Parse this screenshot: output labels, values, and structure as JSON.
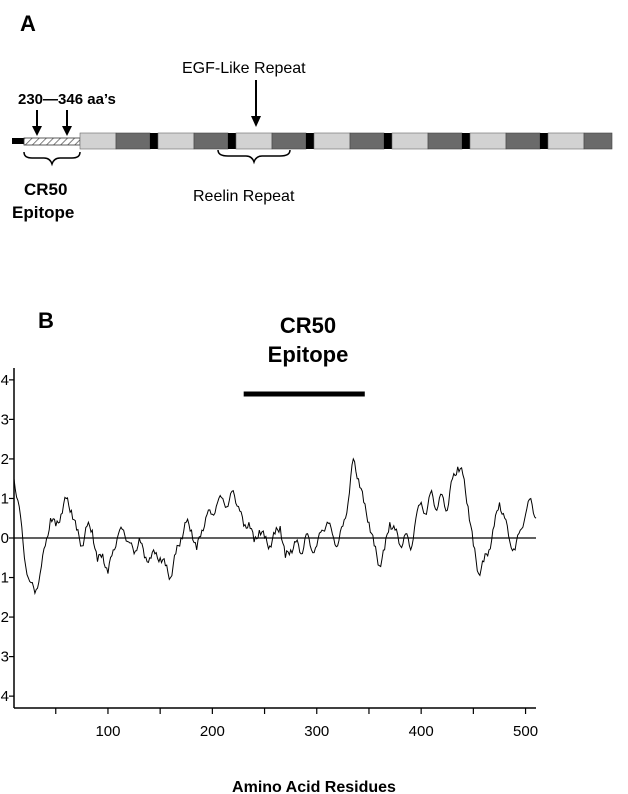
{
  "panel_a": {
    "letter": "A",
    "range_label": "230—346 aa’s",
    "egf_label": "EGF-Like Repeat",
    "reelin_label": "Reelin Repeat",
    "epitope_line1": "CR50",
    "epitope_line2": "Epitope"
  },
  "panel_b": {
    "letter": "B",
    "epitope_line1": "CR50",
    "epitope_line2": "Epitope",
    "xlabel": "Amino Acid Residues"
  },
  "chart_data": {
    "type": "line",
    "title": "",
    "xlabel": "Amino Acid Residues",
    "ylabel": "",
    "xlim": [
      10,
      510
    ],
    "ylim": [
      -4.3,
      4.3
    ],
    "xticks": [
      100,
      200,
      300,
      400,
      500
    ],
    "yticks": [
      4,
      3,
      2,
      1,
      0,
      -1,
      -2,
      -3,
      -4
    ],
    "ytick_labels": [
      "4",
      "3",
      "2",
      "1",
      "0",
      "1",
      "2",
      "3",
      "4"
    ],
    "epitope_range": [
      230,
      346
    ],
    "series": [
      {
        "x": [
          10,
          15,
          20,
          25,
          30,
          35,
          40,
          45,
          50,
          55,
          60,
          65,
          70,
          75,
          80,
          85,
          90,
          95,
          100,
          105,
          110,
          115,
          120,
          125,
          130,
          135,
          140,
          145,
          150,
          155,
          160,
          165,
          170,
          175,
          180,
          185,
          190,
          195,
          200,
          205,
          210,
          215,
          220,
          225,
          230,
          235,
          240,
          245,
          250,
          255,
          260,
          265,
          270,
          275,
          280,
          285,
          290,
          295,
          300,
          305,
          310,
          315,
          320,
          325,
          330,
          335,
          340,
          345,
          350,
          355,
          360,
          365,
          370,
          375,
          380,
          385,
          390,
          395,
          400,
          405,
          410,
          415,
          420,
          425,
          430,
          435,
          440,
          445,
          450,
          455,
          460,
          465,
          470,
          475,
          480,
          485,
          490,
          495,
          500,
          505,
          510
        ],
        "values": [
          1.5,
          0.8,
          -0.5,
          -1.1,
          -1.4,
          -0.9,
          -0.2,
          0.5,
          0.3,
          0.6,
          1.0,
          0.7,
          0.2,
          -0.2,
          0.3,
          0.2,
          -0.6,
          -0.4,
          -0.9,
          -0.3,
          0.1,
          0.2,
          -0.1,
          -0.4,
          0.0,
          -0.5,
          -0.5,
          -0.4,
          -0.5,
          -0.7,
          -1.0,
          -0.4,
          0.0,
          0.4,
          0.2,
          -0.3,
          0.2,
          0.6,
          0.6,
          0.9,
          1.0,
          0.8,
          1.2,
          0.8,
          0.3,
          0.4,
          -0.1,
          0.2,
          0.0,
          -0.2,
          0.1,
          0.3,
          -0.5,
          -0.3,
          -0.1,
          -0.4,
          0.1,
          -0.3,
          -0.2,
          0.2,
          0.4,
          0.1,
          -0.2,
          0.3,
          0.9,
          2.0,
          1.5,
          0.9,
          0.4,
          -0.2,
          -0.7,
          -0.3,
          0.4,
          0.2,
          -0.2,
          0.1,
          -0.3,
          0.5,
          0.9,
          0.6,
          1.2,
          0.7,
          1.1,
          0.7,
          1.5,
          1.8,
          1.6,
          0.8,
          -0.2,
          -0.9,
          -0.6,
          -0.3,
          0.3,
          0.9,
          0.5,
          -0.1,
          -0.3,
          0.2,
          0.6,
          1.0,
          0.5
        ]
      }
    ],
    "grid": false,
    "legend": "none"
  }
}
